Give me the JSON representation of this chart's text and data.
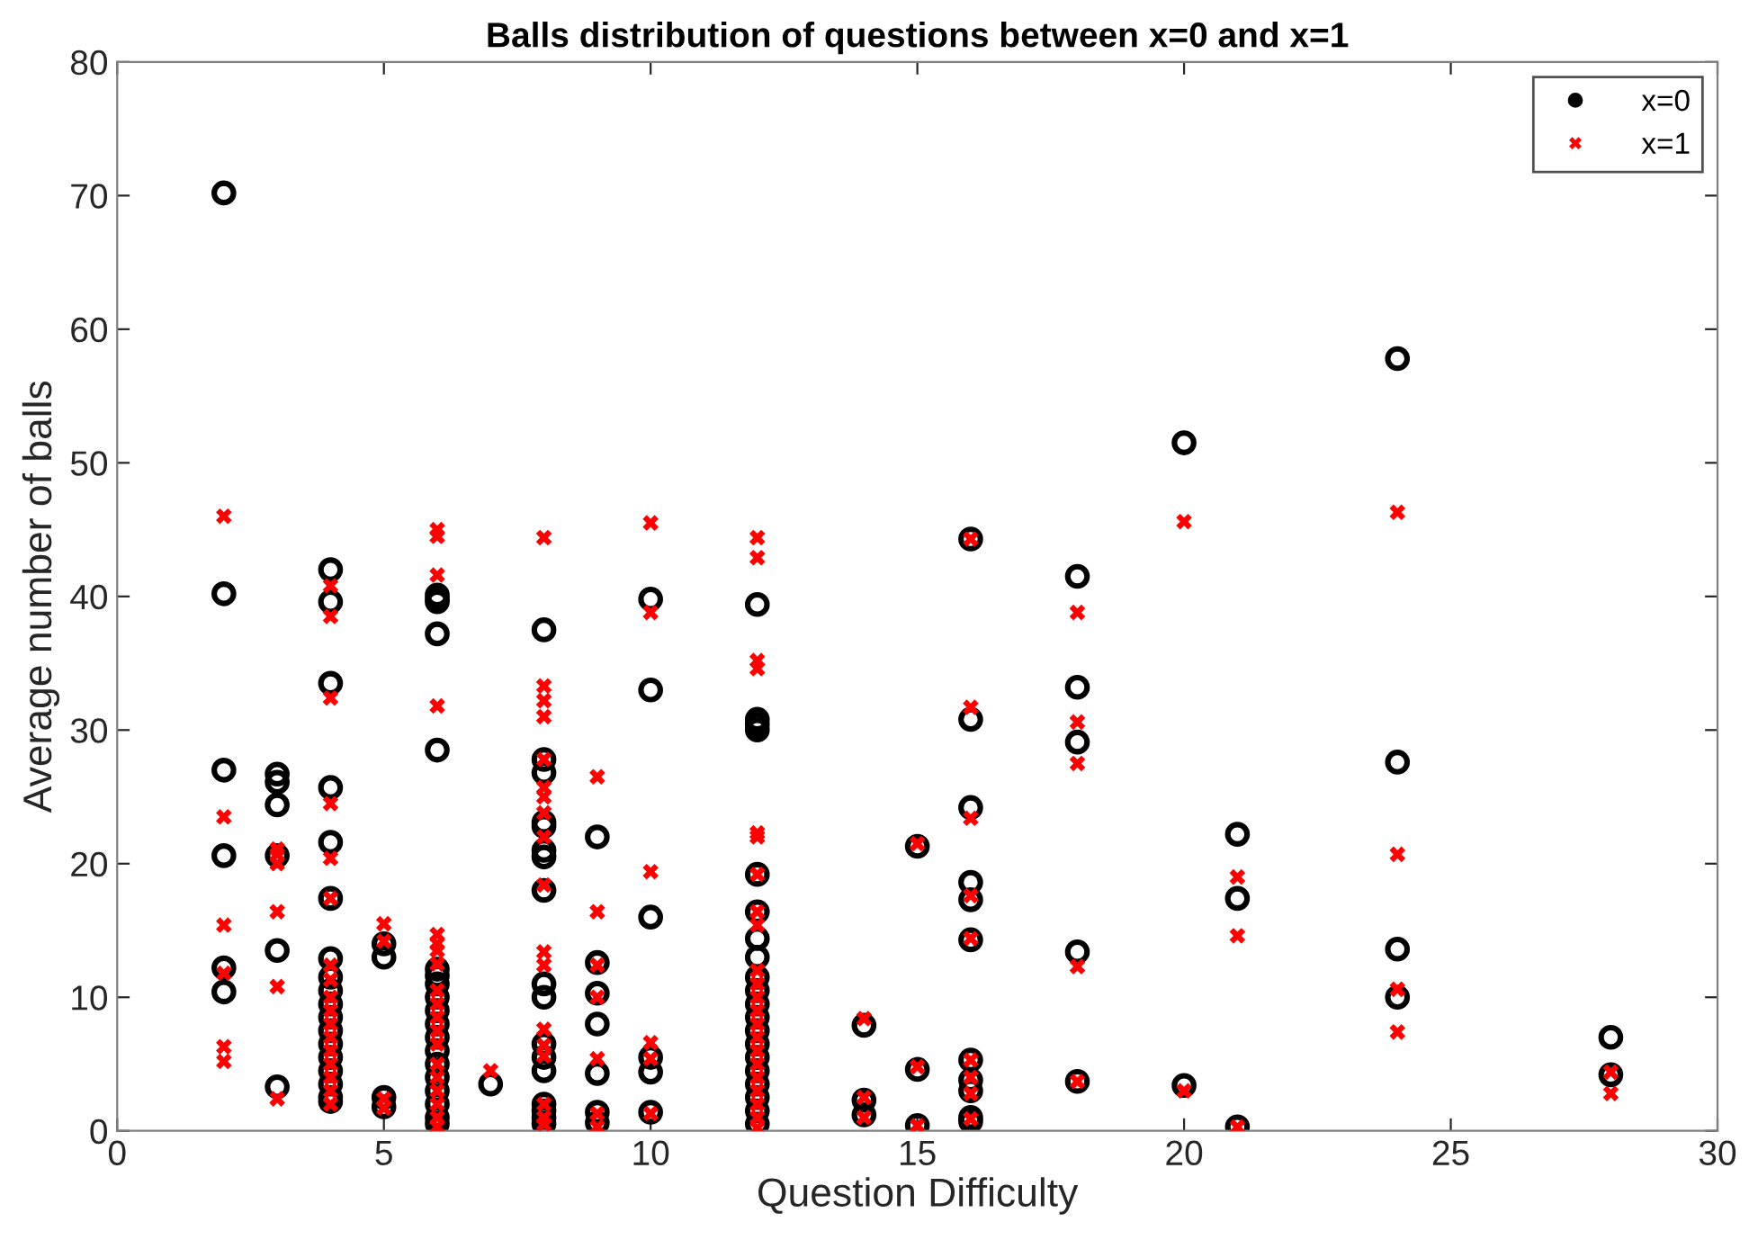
{
  "chart_data": {
    "type": "scatter",
    "title": "Balls distribution of questions between x=0 and x=1",
    "xlabel": "Question Difficulty",
    "ylabel": "Average number of balls",
    "xlim": [
      0,
      30
    ],
    "xticks": [
      0,
      5,
      10,
      15,
      20,
      25,
      30
    ],
    "ylim": [
      0,
      80
    ],
    "yticks": [
      0,
      10,
      20,
      30,
      40,
      50,
      60,
      70,
      80
    ],
    "grid": false,
    "legend": "top right",
    "series": [
      {
        "name": "x=0",
        "color": "#000000",
        "marker": "circle",
        "x": [
          2,
          2,
          2,
          2,
          2,
          2,
          3,
          3,
          3,
          3,
          3,
          3,
          4,
          4,
          4,
          4,
          4,
          4,
          4,
          4,
          4,
          4,
          4,
          4,
          4,
          4,
          4,
          4,
          4,
          4,
          5,
          5,
          5,
          5,
          6,
          6,
          6,
          6,
          6,
          6,
          6,
          6,
          6,
          6,
          6,
          6,
          6,
          6,
          6,
          6,
          6,
          6,
          6,
          7,
          8,
          8,
          8,
          8,
          8,
          8,
          8,
          8,
          8,
          8,
          8,
          8,
          8,
          8,
          8,
          8,
          8,
          9,
          9,
          9,
          9,
          9,
          9,
          9,
          10,
          10,
          10,
          10,
          10,
          10,
          12,
          12,
          12,
          12,
          12,
          12,
          12,
          12,
          12,
          12,
          12,
          12,
          12,
          12,
          12,
          12,
          12,
          12,
          12,
          12,
          14,
          14,
          14,
          15,
          15,
          15,
          16,
          16,
          16,
          16,
          16,
          16,
          16,
          16,
          16,
          16,
          16,
          18,
          18,
          18,
          18,
          18,
          20,
          20,
          21,
          21,
          21,
          24,
          24,
          24,
          24,
          28,
          28
        ],
        "values": [
          70.2,
          40.2,
          27,
          20.6,
          12.2,
          10.4,
          26.7,
          26.1,
          24.4,
          20.6,
          13.5,
          3.3,
          42,
          39.6,
          33.5,
          25.7,
          21.6,
          17.4,
          12.9,
          11.5,
          10.5,
          9.5,
          8.5,
          7.5,
          6.5,
          5.5,
          4.5,
          3.5,
          2.5,
          2.2,
          14,
          13,
          2.5,
          1.8,
          40.1,
          39.8,
          39.6,
          37.2,
          28.5,
          12.1,
          11.6,
          11,
          10,
          9,
          8,
          7,
          6,
          5,
          4,
          3,
          2,
          1,
          0.5,
          3.5,
          37.5,
          27.8,
          26.8,
          23.1,
          22.8,
          21,
          20.5,
          18,
          11,
          10,
          6.5,
          5.5,
          4.5,
          2,
          1.5,
          1,
          0.5,
          22,
          12.6,
          10.3,
          8,
          4.3,
          1.4,
          0.6,
          39.8,
          33,
          16,
          5.5,
          4.4,
          1.4,
          39.4,
          30.8,
          30.4,
          30,
          19.2,
          16.4,
          14.4,
          13,
          11.5,
          10.5,
          9.5,
          8.5,
          7.5,
          6.5,
          5.5,
          4.5,
          3.5,
          2.5,
          1.5,
          0.5,
          7.9,
          2.3,
          1.2,
          21.3,
          4.6,
          0.4,
          44.3,
          30.8,
          24.2,
          18.6,
          17.3,
          14.3,
          5.3,
          3.8,
          3,
          1,
          0.7,
          41.5,
          33.2,
          29.1,
          13.4,
          3.7,
          51.5,
          3.4,
          22.2,
          17.4,
          0.3,
          57.8,
          27.6,
          13.6,
          10,
          7,
          4.2
        ]
      },
      {
        "name": "x=1",
        "color": "#ff0000",
        "marker": "cross",
        "x": [
          2,
          2,
          2,
          2,
          2,
          2,
          3,
          3,
          3,
          3,
          3,
          3,
          4,
          4,
          4,
          4,
          4,
          4,
          4,
          4,
          4,
          4,
          4,
          4,
          4,
          4,
          4,
          4,
          4,
          5,
          5,
          5,
          5,
          6,
          6,
          6,
          6,
          6,
          6,
          6,
          6,
          6,
          6,
          6,
          6,
          6,
          6,
          6,
          6,
          6,
          6,
          6,
          7,
          8,
          8,
          8,
          8,
          8,
          8,
          8,
          8,
          8,
          8,
          8,
          8,
          8,
          8,
          8,
          8,
          8,
          8,
          9,
          9,
          9,
          9,
          9,
          9,
          9,
          10,
          10,
          10,
          10,
          10,
          10,
          12,
          12,
          12,
          12,
          12,
          12,
          12,
          12,
          12,
          12,
          12,
          12,
          12,
          12,
          12,
          12,
          12,
          12,
          12,
          12,
          12,
          12,
          14,
          14,
          14,
          15,
          15,
          15,
          16,
          16,
          16,
          16,
          16,
          16,
          16,
          16,
          16,
          18,
          18,
          18,
          18,
          18,
          20,
          20,
          21,
          21,
          21,
          24,
          24,
          24,
          24,
          28,
          28
        ],
        "values": [
          46,
          23.5,
          15.4,
          11.8,
          6.3,
          5.2,
          21.1,
          20.7,
          20,
          16.4,
          10.8,
          2.4,
          40.8,
          38.5,
          32.4,
          24.5,
          20.4,
          17.4,
          12.4,
          11.3,
          10,
          9,
          8,
          7,
          6,
          5,
          4,
          3,
          2,
          15.5,
          14.2,
          2.4,
          1.7,
          45,
          44.5,
          41.6,
          31.8,
          14.7,
          14,
          13.5,
          12.5,
          10.5,
          9.5,
          8.5,
          7.5,
          6.5,
          5,
          4,
          3,
          2,
          1,
          0.3,
          4.5,
          44.4,
          33.3,
          32.2,
          31,
          27.8,
          25.7,
          25,
          23.8,
          22,
          18.4,
          13.4,
          12.4,
          7.6,
          6.4,
          5.6,
          2,
          1,
          0.5,
          26.5,
          16.4,
          12.4,
          10,
          5.4,
          1.3,
          0.3,
          45.5,
          38.8,
          19.4,
          6.6,
          5.4,
          1.3,
          44.4,
          42.9,
          35.2,
          34.6,
          22.3,
          22,
          19.2,
          16.4,
          15.4,
          12,
          11,
          10,
          9,
          8,
          7,
          6,
          5,
          4,
          3,
          2,
          1,
          0.2,
          8.4,
          2.5,
          1,
          21.5,
          4.8,
          0.4,
          44.3,
          31.7,
          23.4,
          17.6,
          14.4,
          5.3,
          4,
          2.8,
          0.9,
          38.8,
          30.6,
          27.5,
          12.3,
          3.7,
          45.6,
          3,
          19,
          14.6,
          0.3,
          46.3,
          20.7,
          10.6,
          7.4,
          4.4,
          2.8
        ]
      }
    ]
  }
}
